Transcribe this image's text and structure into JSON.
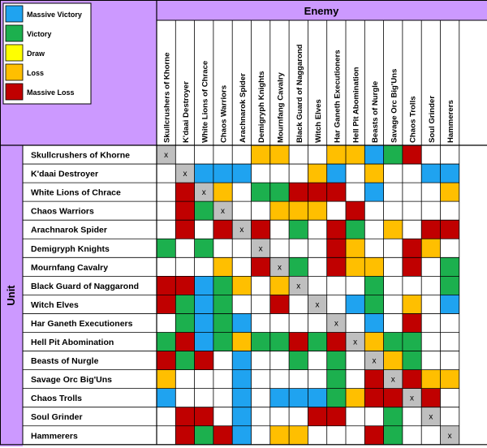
{
  "legend": [
    {
      "label": "Massive Victory",
      "color": "#1fa3f0"
    },
    {
      "label": "Victory",
      "color": "#1cb04e"
    },
    {
      "label": "Draw",
      "color": "#ffff00"
    },
    {
      "label": "Loss",
      "color": "#ffbf00"
    },
    {
      "label": "Massive Loss",
      "color": "#c00000"
    }
  ],
  "colors": {
    "header_bg": "#cc99ff",
    "empty": "#ffffff",
    "self": "#bfbfbf",
    "grid": "#000000"
  },
  "chart_data": {
    "type": "heatmap",
    "column_group_label": "Enemy",
    "row_group_label": "Unit",
    "self_mark": "x",
    "columns": [
      "Skullcrushers of Khorne",
      "K'daai Destroyer",
      "White Lions of Chrace",
      "Chaos Warriors",
      "Arachnarok Spider",
      "Demigryph Knights",
      "Mournfang Cavalry",
      "Black Guard of Naggarond",
      "Witch Elves",
      "Har Ganeth Executioners",
      "Hell Pit Abomination",
      "Beasts of Nurgle",
      "Savage Orc Big'Uns",
      "Chaos Trolls",
      "Soul Grinder",
      "Hammerers"
    ],
    "rows": [
      "Skullcrushers of Khorne",
      "K'daai Destroyer",
      "White Lions of Chrace",
      "Chaos Warriors",
      "Arachnarok Spider",
      "Demigryph Knights",
      "Mournfang Cavalry",
      "Black Guard of Naggarond",
      "Witch Elves",
      "Har Ganeth Executioners",
      "Hell Pit Abomination",
      "Beasts of Nurgle",
      "Savage Orc Big'Uns",
      "Chaos Trolls",
      "Soul Grinder",
      "Hammerers"
    ],
    "outcome_codes": {
      "MV": "Massive Victory",
      "V": "Victory",
      "D": "Draw",
      "L": "Loss",
      "ML": "Massive Loss",
      "": "none",
      "X": "self"
    },
    "cells": [
      [
        "X",
        "",
        "",
        "",
        "",
        "L",
        "L",
        "",
        "",
        "L",
        "L",
        "MV",
        "V",
        "ML",
        "",
        ""
      ],
      [
        "",
        "X",
        "MV",
        "MV",
        "MV",
        "",
        "",
        "",
        "L",
        "MV",
        "",
        "L",
        "",
        "",
        "MV",
        "MV"
      ],
      [
        "",
        "ML",
        "X",
        "L",
        "",
        "V",
        "V",
        "ML",
        "ML",
        "ML",
        "",
        "MV",
        "",
        "",
        "",
        "L"
      ],
      [
        "",
        "ML",
        "V",
        "X",
        "",
        "",
        "L",
        "L",
        "L",
        "",
        "ML",
        "",
        "",
        "",
        "",
        ""
      ],
      [
        "",
        "ML",
        "",
        "ML",
        "X",
        "ML",
        "",
        "V",
        "",
        "ML",
        "V",
        "",
        "L",
        "",
        "ML",
        "ML"
      ],
      [
        "V",
        "",
        "V",
        "",
        "",
        "X",
        "",
        "",
        "",
        "ML",
        "L",
        "",
        "",
        "ML",
        "L",
        ""
      ],
      [
        "",
        "",
        "",
        "L",
        "",
        "ML",
        "X",
        "V",
        "",
        "ML",
        "L",
        "L",
        "",
        "ML",
        "",
        "V"
      ],
      [
        "ML",
        "ML",
        "MV",
        "V",
        "L",
        "",
        "L",
        "X",
        "",
        "",
        "",
        "V",
        "",
        "",
        "",
        "V"
      ],
      [
        "ML",
        "V",
        "MV",
        "V",
        "",
        "",
        "ML",
        "",
        "X",
        "",
        "MV",
        "V",
        "",
        "L",
        "",
        "MV"
      ],
      [
        "",
        "V",
        "MV",
        "V",
        "MV",
        "",
        "",
        "",
        "",
        "X",
        "",
        "MV",
        "",
        "ML",
        "",
        ""
      ],
      [
        "V",
        "ML",
        "MV",
        "V",
        "L",
        "V",
        "V",
        "ML",
        "V",
        "ML",
        "X",
        "L",
        "V",
        "V",
        "",
        ""
      ],
      [
        "ML",
        "V",
        "ML",
        "",
        "MV",
        "",
        "",
        "V",
        "",
        "V",
        "",
        "X",
        "L",
        "V",
        "",
        ""
      ],
      [
        "L",
        "",
        "",
        "",
        "MV",
        "",
        "",
        "",
        "",
        "V",
        "",
        "ML",
        "X",
        "ML",
        "L",
        "L"
      ],
      [
        "MV",
        "",
        "",
        "",
        "MV",
        "",
        "MV",
        "MV",
        "MV",
        "V",
        "L",
        "ML",
        "ML",
        "X",
        "ML",
        ""
      ],
      [
        "",
        "ML",
        "ML",
        "",
        "MV",
        "",
        "",
        "",
        "ML",
        "ML",
        "",
        "",
        "V",
        "",
        "X",
        ""
      ],
      [
        "",
        "ML",
        "V",
        "ML",
        "MV",
        "",
        "L",
        "L",
        "",
        "",
        "",
        "ML",
        "V",
        "",
        "",
        "X"
      ]
    ]
  }
}
